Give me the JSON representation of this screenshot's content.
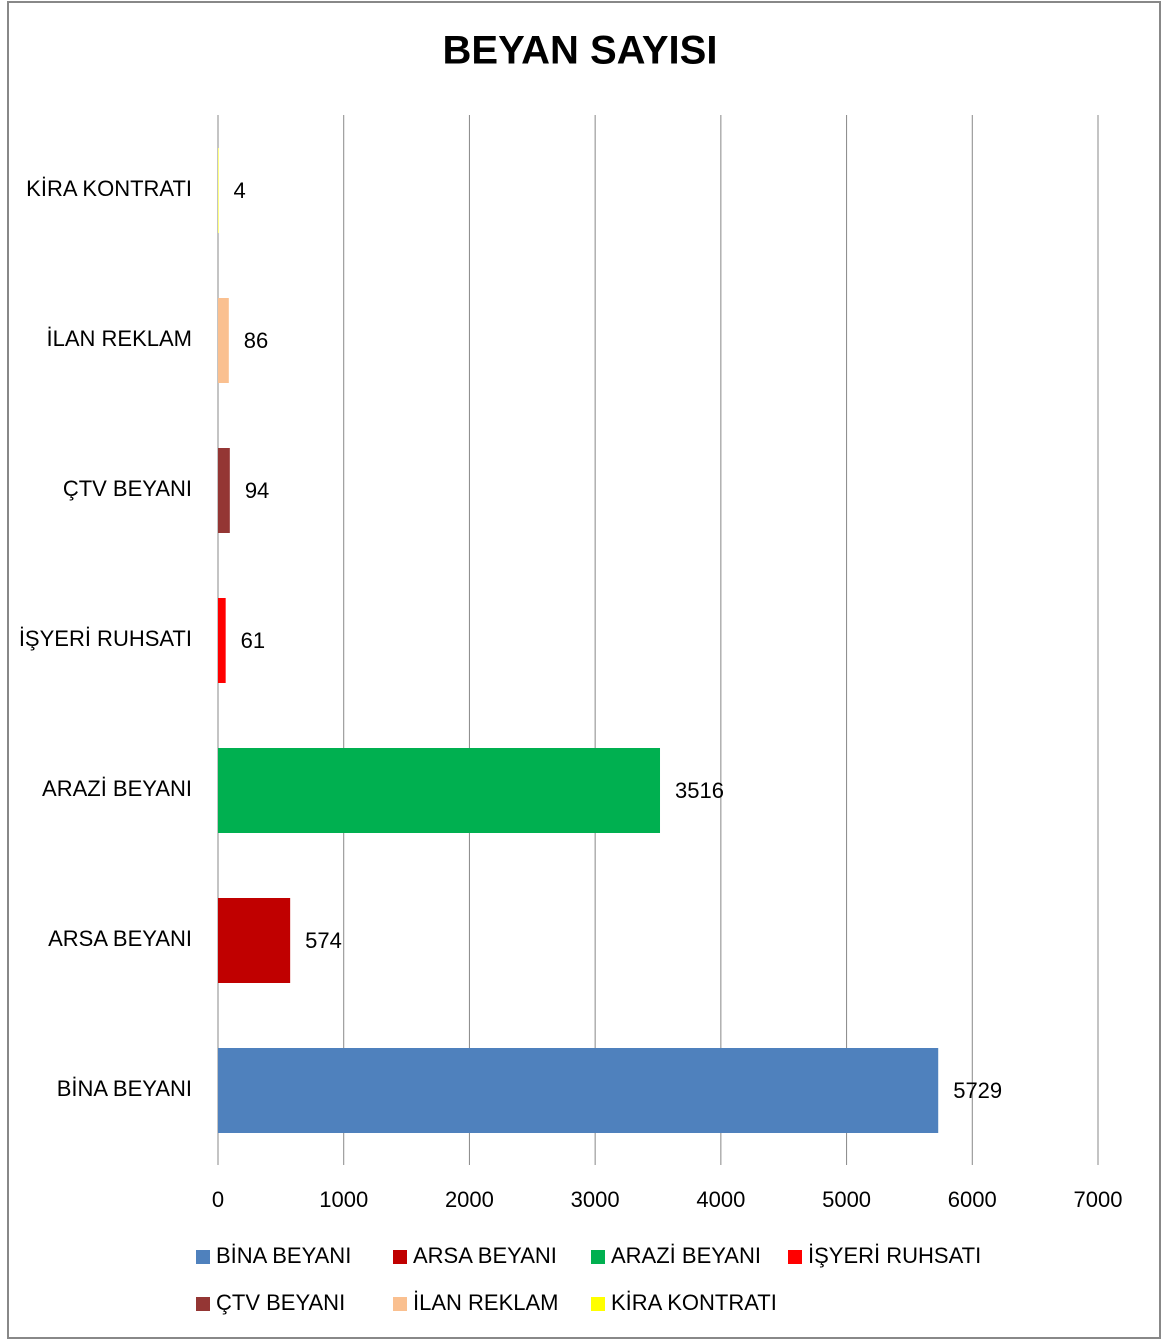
{
  "chart_data": {
    "type": "bar",
    "orientation": "horizontal",
    "title": "BEYAN SAYISI",
    "categories": [
      "BİNA BEYANI",
      "ARSA BEYANI",
      "ARAZİ BEYANI",
      "İŞYERİ RUHSATI",
      "ÇTV BEYANI",
      "İLAN REKLAM",
      "KİRA KONTRATI"
    ],
    "values": [
      5729,
      574,
      3516,
      61,
      94,
      86,
      4
    ],
    "colors": [
      "#4f81bd",
      "#c00000",
      "#00b050",
      "#ff0000",
      "#943634",
      "#fac090",
      "#ffff00"
    ],
    "xlim": [
      0,
      7000
    ],
    "xticks": [
      0,
      1000,
      2000,
      3000,
      4000,
      5000,
      6000,
      7000
    ],
    "grid": true
  }
}
